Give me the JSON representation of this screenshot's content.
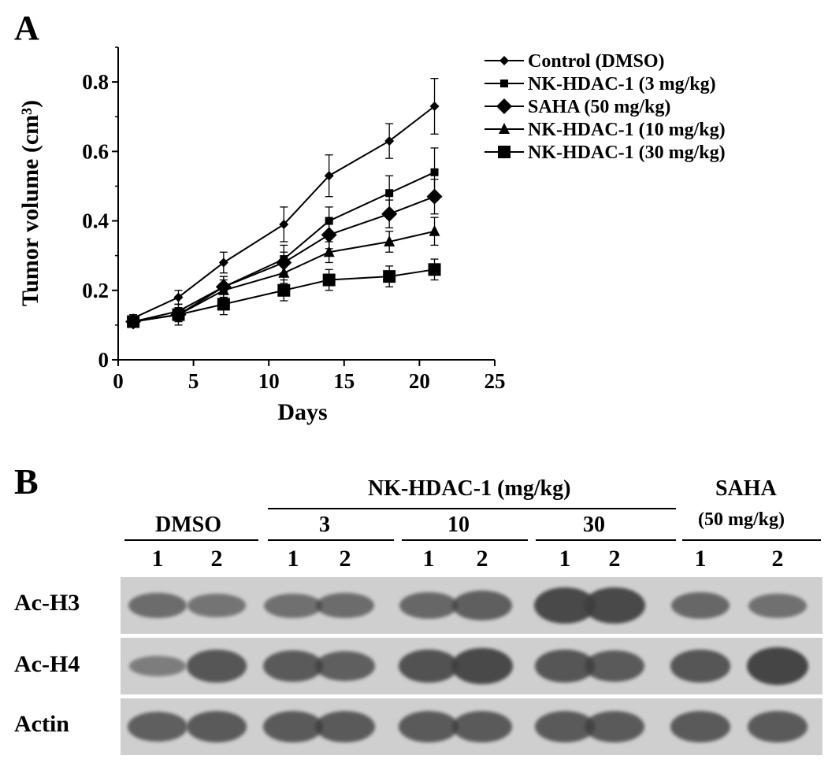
{
  "panel_a": {
    "label": "A",
    "chart_data": {
      "type": "line",
      "xlabel": "Days",
      "ylabel": "Tumor volume (cm³)",
      "xlim": [
        0,
        25
      ],
      "ylim": [
        0,
        0.9
      ],
      "x_ticks": [
        "0",
        "5",
        "10",
        "15",
        "20",
        "25"
      ],
      "y_ticks": [
        "0",
        "0.2",
        "0.4",
        "0.6",
        "0.8"
      ],
      "grid": false,
      "legend_position": "top-right",
      "x": [
        1,
        4,
        7,
        11,
        14,
        18,
        21
      ],
      "series": [
        {
          "name": "Control (DMSO)",
          "marker": "small-diamond",
          "values": [
            0.12,
            0.18,
            0.28,
            0.39,
            0.53,
            0.63,
            0.73
          ],
          "errors": [
            0.01,
            0.02,
            0.03,
            0.05,
            0.06,
            0.05,
            0.08
          ]
        },
        {
          "name": "NK-HDAC-1 (3 mg/kg)",
          "marker": "small-square",
          "values": [
            0.11,
            0.14,
            0.21,
            0.29,
            0.4,
            0.48,
            0.54
          ],
          "errors": [
            0.01,
            0.02,
            0.03,
            0.04,
            0.04,
            0.05,
            0.07
          ]
        },
        {
          "name": "SAHA (50 mg/kg)",
          "marker": "diamond",
          "values": [
            0.11,
            0.13,
            0.21,
            0.28,
            0.36,
            0.42,
            0.47
          ],
          "errors": [
            0.01,
            0.02,
            0.03,
            0.03,
            0.04,
            0.04,
            0.05
          ]
        },
        {
          "name": "NK-HDAC-1 (10 mg/kg)",
          "marker": "triangle",
          "values": [
            0.11,
            0.13,
            0.2,
            0.25,
            0.31,
            0.34,
            0.37
          ],
          "errors": [
            0.01,
            0.02,
            0.03,
            0.03,
            0.03,
            0.03,
            0.04
          ]
        },
        {
          "name": "NK-HDAC-1 (30 mg/kg)",
          "marker": "square",
          "values": [
            0.11,
            0.13,
            0.16,
            0.2,
            0.23,
            0.24,
            0.26
          ],
          "errors": [
            0.01,
            0.03,
            0.03,
            0.03,
            0.03,
            0.03,
            0.03
          ]
        }
      ]
    }
  },
  "panel_b": {
    "label": "B",
    "group_nk": "NK-HDAC-1 (mg/kg)",
    "group_dmso": "DMSO",
    "group_saha": "SAHA",
    "group_saha_dose": "(50 mg/kg)",
    "dose_3": "3",
    "dose_10": "10",
    "dose_30": "30",
    "lanes": [
      "1",
      "2",
      "1",
      "2",
      "1",
      "2",
      "1",
      "2",
      "1",
      "2"
    ],
    "rows": [
      {
        "label": "Ac-H3",
        "band_intensity": [
          0.55,
          0.45,
          0.5,
          0.55,
          0.6,
          0.7,
          0.95,
          0.95,
          0.6,
          0.5
        ]
      },
      {
        "label": "Ac-H4",
        "band_intensity": [
          0.35,
          0.8,
          0.75,
          0.7,
          0.85,
          0.95,
          0.8,
          0.75,
          0.8,
          1.0
        ]
      },
      {
        "label": "Actin",
        "band_intensity": [
          0.7,
          0.75,
          0.75,
          0.75,
          0.75,
          0.75,
          0.75,
          0.75,
          0.75,
          0.75
        ]
      }
    ]
  }
}
